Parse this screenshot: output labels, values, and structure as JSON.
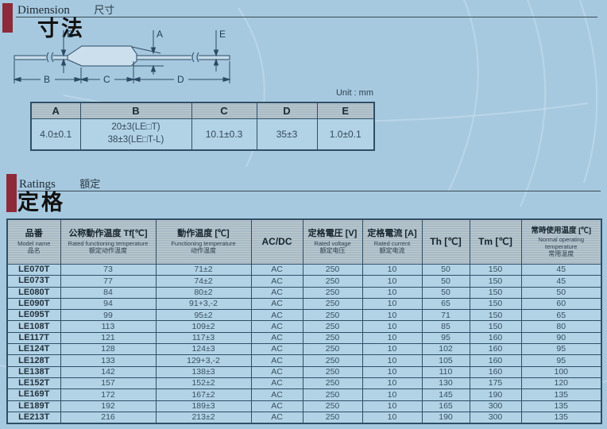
{
  "colors": {
    "page_bg": "#a7c9e0",
    "accent_bar": "#8e2b38",
    "table_border": "#2f4f66"
  },
  "dimension_section": {
    "label_en": "Dimension",
    "label_zh": "尺寸",
    "title": "寸法",
    "unit_note": "Unit : mm"
  },
  "ratings_section": {
    "label_en": "Ratings",
    "label_zh": "額定",
    "title": "定格"
  },
  "drawing": {
    "dim_a": "A",
    "dim_b": "B",
    "dim_c": "C",
    "dim_d": "D",
    "dim_e_left": "E",
    "dim_e_right": "E"
  },
  "dimension_table": {
    "headers": [
      "A",
      "B",
      "C",
      "D",
      "E"
    ],
    "values": {
      "a": "4.0±0.1",
      "b_line1": "20±3(LE□T)",
      "b_line2": "38±3(LE□T-L)",
      "c": "10.1±0.3",
      "d": "35±3",
      "e": "1.0±0.1"
    }
  },
  "ratings_table": {
    "columns": [
      {
        "zh": "品番",
        "en": "Model name",
        "cn": "品名"
      },
      {
        "zh": "公称動作温度 Tf[℃]",
        "en": "Rated functioning temperature",
        "cn": "额定动作温度"
      },
      {
        "zh": "動作温度 [℃]",
        "en": "Functioning temperature",
        "cn": "动作温度"
      },
      {
        "zh": "AC/DC",
        "en": "",
        "cn": ""
      },
      {
        "zh": "定格電圧 [V]",
        "en": "Rated voltage",
        "cn": "额定电压"
      },
      {
        "zh": "定格電流 [A]",
        "en": "Rated current",
        "cn": "额定电流"
      },
      {
        "zh": "Th [℃]",
        "en": "",
        "cn": ""
      },
      {
        "zh": "Tm [℃]",
        "en": "",
        "cn": ""
      },
      {
        "zh": "常時使用温度 [℃]",
        "en": "Normal operating temperature",
        "cn": "常用温度"
      }
    ],
    "rows": [
      [
        "LE070T",
        "73",
        "71±2",
        "AC",
        "250",
        "10",
        "50",
        "150",
        "45"
      ],
      [
        "LE073T",
        "77",
        "74±2",
        "AC",
        "250",
        "10",
        "50",
        "150",
        "45"
      ],
      [
        "LE080T",
        "84",
        "80±2",
        "AC",
        "250",
        "10",
        "50",
        "150",
        "50"
      ],
      [
        "LE090T",
        "94",
        "91+3,-2",
        "AC",
        "250",
        "10",
        "65",
        "150",
        "60"
      ],
      [
        "LE095T",
        "99",
        "95±2",
        "AC",
        "250",
        "10",
        "71",
        "150",
        "65"
      ],
      [
        "LE108T",
        "113",
        "109±2",
        "AC",
        "250",
        "10",
        "85",
        "150",
        "80"
      ],
      [
        "LE117T",
        "121",
        "117±3",
        "AC",
        "250",
        "10",
        "95",
        "160",
        "90"
      ],
      [
        "LE124T",
        "128",
        "124±3",
        "AC",
        "250",
        "10",
        "102",
        "160",
        "95"
      ],
      [
        "LE128T",
        "133",
        "129+3,-2",
        "AC",
        "250",
        "10",
        "105",
        "160",
        "95"
      ],
      [
        "LE138T",
        "142",
        "138±3",
        "AC",
        "250",
        "10",
        "110",
        "160",
        "100"
      ],
      [
        "LE152T",
        "157",
        "152±2",
        "AC",
        "250",
        "10",
        "130",
        "175",
        "120"
      ],
      [
        "LE169T",
        "172",
        "167±2",
        "AC",
        "250",
        "10",
        "145",
        "190",
        "135"
      ],
      [
        "LE189T",
        "192",
        "189±3",
        "AC",
        "250",
        "10",
        "165",
        "300",
        "135"
      ],
      [
        "LE213T",
        "216",
        "213±2",
        "AC",
        "250",
        "10",
        "190",
        "300",
        "135"
      ]
    ]
  }
}
